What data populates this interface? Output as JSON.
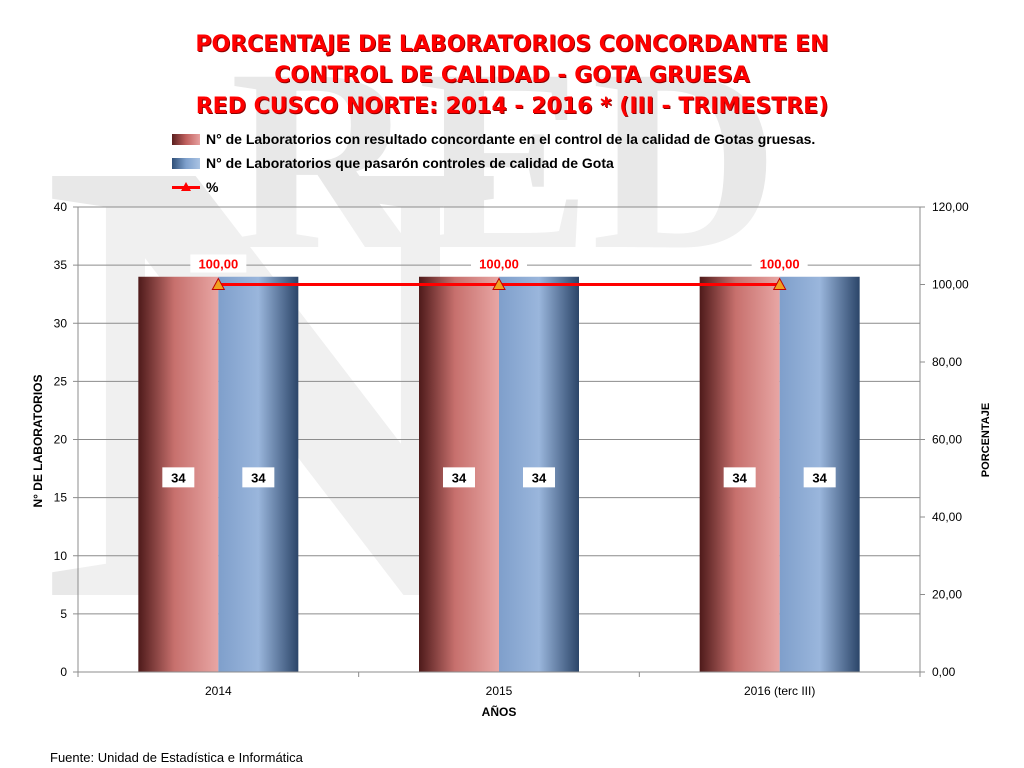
{
  "title_lines": [
    "PORCENTAJE DE LABORATORIOS CONCORDANTE EN",
    "CONTROL DE CALIDAD - GOTA GRUESA",
    "RED CUSCO NORTE: 2014 - 2016 * (III - TRIMESTRE)"
  ],
  "legend": [
    {
      "label": "N° de Laboratorios con resultado concordante en el control de la calidad de Gotas gruesas.",
      "kind": "bar",
      "color": "#c0605e"
    },
    {
      "label": "N° de Laboratorios que pasarón controles de calidad de Gota",
      "kind": "bar",
      "color": "#7ea0cc"
    },
    {
      "label": "%",
      "kind": "line",
      "color": "#ff0000"
    }
  ],
  "source": "Fuente: Unidad de Estadística e Informática",
  "chart_data": {
    "type": "bar",
    "categories": [
      "2014",
      "2015",
      "2016 (terc III)"
    ],
    "series": [
      {
        "name": "N° de Laboratorios con resultado concordante en el control de la calidad de Gotas gruesas.",
        "values": [
          34,
          34,
          34
        ],
        "color": "#c0605e",
        "axis": "left",
        "kind": "bar"
      },
      {
        "name": "N° de Laboratorios que pasarón controles de calidad de Gota",
        "values": [
          34,
          34,
          34
        ],
        "color": "#7ea0cc",
        "axis": "left",
        "kind": "bar"
      },
      {
        "name": "%",
        "values": [
          100.0,
          100.0,
          100.0
        ],
        "value_labels": [
          "100,00",
          "100,00",
          "100,00"
        ],
        "color": "#ff0000",
        "axis": "right",
        "kind": "line"
      }
    ],
    "xlabel": "AÑOS",
    "ylabel": "N° DE LABORATORIOS",
    "y2label": "PORCENTAJE",
    "ylim": [
      0,
      40
    ],
    "y2lim": [
      0,
      120
    ],
    "yticks": [
      "0",
      "5",
      "10",
      "15",
      "20",
      "25",
      "30",
      "35",
      "40"
    ],
    "y2ticks": [
      "0,00",
      "20,00",
      "40,00",
      "60,00",
      "80,00",
      "100,00",
      "120,00"
    ],
    "grid": true,
    "legend_position": "top"
  }
}
